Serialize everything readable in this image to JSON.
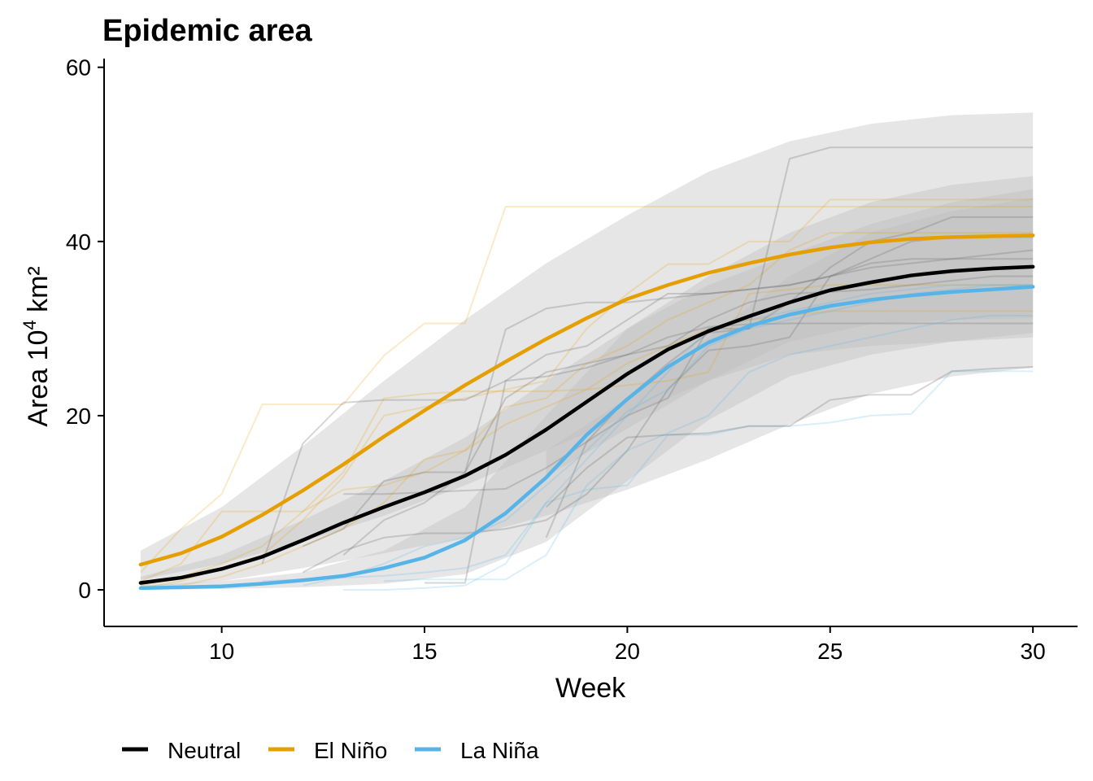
{
  "chart_data": {
    "type": "line",
    "title": "Epidemic area",
    "xlabel": "Week",
    "ylabel": {
      "prefix": "Area 10",
      "superscript": "4",
      "suffix": " km²"
    },
    "xlim": [
      7.1,
      31.1
    ],
    "ylim": [
      -4.2,
      61
    ],
    "x_ticks": [
      10,
      15,
      20,
      25,
      30
    ],
    "y_ticks": [
      0,
      20,
      40,
      60
    ],
    "x_tick_labels": [
      "10",
      "15",
      "20",
      "25",
      "30"
    ],
    "y_tick_labels": [
      "0",
      "20",
      "40",
      "60"
    ],
    "legend_position": "bottom-left",
    "colors": {
      "Neutral": "#000000",
      "El Niño": "#E69F00",
      "La Niña": "#56B4E9",
      "ribbon": "#bdbdbd"
    },
    "series": [
      {
        "name": "Neutral",
        "color": "#000000",
        "x": [
          8,
          9,
          10,
          11,
          12,
          13,
          14,
          15,
          16,
          17,
          18,
          19,
          20,
          21,
          22,
          23,
          24,
          25,
          26,
          27,
          28,
          29,
          30
        ],
        "values": [
          0.8,
          1.4,
          2.4,
          3.8,
          5.7,
          7.7,
          9.5,
          11.2,
          13.1,
          15.5,
          18.4,
          21.6,
          24.8,
          27.6,
          29.7,
          31.4,
          33.0,
          34.4,
          35.3,
          36.1,
          36.6,
          36.9,
          37.1
        ]
      },
      {
        "name": "El Niño",
        "color": "#E69F00",
        "x": [
          8,
          9,
          10,
          11,
          12,
          13,
          14,
          15,
          16,
          17,
          18,
          19,
          20,
          21,
          22,
          23,
          24,
          25,
          26,
          27,
          28,
          29,
          30
        ],
        "values": [
          2.9,
          4.2,
          6.1,
          8.6,
          11.4,
          14.4,
          17.6,
          20.6,
          23.5,
          26.2,
          28.8,
          31.2,
          33.4,
          35.0,
          36.4,
          37.5,
          38.5,
          39.3,
          39.9,
          40.3,
          40.5,
          40.6,
          40.7
        ]
      },
      {
        "name": "La Niña",
        "color": "#56B4E9",
        "x": [
          8,
          9,
          10,
          11,
          12,
          13,
          14,
          15,
          16,
          17,
          18,
          19,
          20,
          21,
          22,
          23,
          24,
          25,
          26,
          27,
          28,
          29,
          30
        ],
        "values": [
          0.2,
          0.3,
          0.4,
          0.7,
          1.1,
          1.6,
          2.5,
          3.7,
          5.7,
          8.8,
          12.9,
          17.8,
          21.9,
          25.6,
          28.4,
          30.3,
          31.6,
          32.6,
          33.3,
          33.8,
          34.2,
          34.5,
          34.8
        ]
      }
    ],
    "ribbons": [
      {
        "series": "El Niño",
        "x": [
          8,
          10,
          12,
          14,
          16,
          18,
          20,
          22,
          24,
          26,
          28,
          30
        ],
        "lower": [
          1.2,
          3.0,
          5.5,
          8.5,
          12.0,
          16.0,
          20.0,
          24.0,
          27.0,
          28.0,
          28.5,
          29.0
        ],
        "upper": [
          4.5,
          9.5,
          16.5,
          24.0,
          31.0,
          37.5,
          43.0,
          48.0,
          51.5,
          53.5,
          54.5,
          54.8
        ]
      },
      {
        "series": "Neutral",
        "x": [
          8,
          10,
          12,
          14,
          16,
          18,
          20,
          22,
          24,
          26,
          28,
          30
        ],
        "lower": [
          0.2,
          1.0,
          2.5,
          4.2,
          6.0,
          8.5,
          11.5,
          15.0,
          19.0,
          22.5,
          24.5,
          25.5
        ],
        "upper": [
          1.5,
          4.0,
          8.0,
          12.5,
          17.5,
          24.0,
          30.0,
          36.0,
          41.0,
          44.5,
          46.5,
          47.5
        ]
      },
      {
        "series": "La Niña",
        "x": [
          8,
          10,
          12,
          14,
          16,
          18,
          20,
          22,
          24,
          26,
          28,
          30
        ],
        "lower": [
          0.0,
          0.1,
          0.3,
          0.7,
          1.8,
          5.5,
          12.5,
          19.5,
          24.5,
          27.0,
          28.5,
          29.5
        ],
        "upper": [
          0.5,
          1.0,
          2.0,
          4.5,
          9.5,
          20.0,
          30.0,
          35.0,
          38.5,
          42.0,
          44.5,
          46.0
        ]
      },
      {
        "series": "Neutral",
        "x": [
          18,
          20,
          22,
          24,
          26,
          28,
          30
        ],
        "lower": [
          13.0,
          18.5,
          24.0,
          28.5,
          30.5,
          31.0,
          31.2
        ],
        "upper": [
          16.0,
          22.0,
          29.0,
          36.0,
          41.0,
          43.5,
          45.0
        ]
      }
    ],
    "observed": [
      {
        "series": "El Niño",
        "x": [
          8,
          9,
          10,
          11,
          12,
          13,
          14,
          15,
          16,
          17,
          18,
          19,
          20,
          21,
          22,
          23,
          24,
          25,
          26,
          27,
          28,
          29,
          30
        ],
        "values": [
          2.0,
          7.0,
          11.0,
          21.3,
          21.3,
          21.3,
          26.9,
          30.6,
          30.6,
          44.0,
          44.0,
          44.0,
          44.0,
          44.0,
          44.0,
          44.0,
          44.0,
          44.0,
          44.0,
          44.0,
          44.0,
          44.0,
          44.0
        ]
      },
      {
        "series": "El Niño",
        "x": [
          8,
          9,
          10,
          11,
          12,
          13,
          14,
          15,
          16,
          17,
          18,
          19,
          20,
          21,
          22,
          23,
          24,
          25,
          26,
          27,
          28,
          29,
          30
        ],
        "values": [
          1.0,
          3.0,
          9.0,
          9.0,
          9.0,
          13.5,
          22.0,
          22.5,
          22.8,
          22.8,
          22.8,
          23.0,
          23.5,
          24.0,
          25.0,
          34.0,
          34.5,
          35.0,
          35.0,
          35.0,
          35.0,
          35.0,
          35.0
        ]
      },
      {
        "series": "El Niño",
        "x": [
          8,
          9,
          10,
          11,
          12,
          13,
          14,
          15,
          16,
          17,
          18,
          19,
          20,
          21,
          22,
          23,
          24,
          25,
          26,
          27,
          28,
          29,
          30
        ],
        "values": [
          0.5,
          1.5,
          3.0,
          5.0,
          9.0,
          11.5,
          12.0,
          13.5,
          16.0,
          21.0,
          22.0,
          26.0,
          28.0,
          31.0,
          33.0,
          35.0,
          39.0,
          41.0,
          41.0,
          41.0,
          41.0,
          41.0,
          41.0
        ]
      },
      {
        "series": "El Niño",
        "x": [
          8,
          9,
          10,
          11,
          12,
          13,
          14,
          15,
          16,
          17,
          18,
          19,
          20,
          21,
          22,
          23,
          24,
          25,
          26,
          27,
          28,
          29,
          30
        ],
        "values": [
          0.2,
          1.0,
          2.5,
          4.0,
          8.0,
          13.0,
          20.0,
          21.0,
          22.0,
          23.0,
          24.0,
          30.0,
          34.0,
          37.4,
          37.4,
          40.0,
          40.0,
          44.8,
          44.8,
          44.8,
          44.8,
          44.8,
          44.8
        ]
      },
      {
        "series": "El Niño",
        "x": [
          8,
          9,
          10,
          11,
          12,
          13,
          14,
          15,
          16,
          17,
          18,
          19,
          20,
          21,
          22,
          23,
          24,
          25,
          26,
          27,
          28,
          29,
          30
        ],
        "values": [
          0.1,
          0.5,
          1.5,
          3.0,
          5.0,
          7.0,
          10.0,
          15.0,
          16.0,
          19.0,
          21.0,
          23.0,
          26.0,
          28.0,
          30.0,
          31.0,
          31.5,
          32.0,
          32.0,
          32.0,
          32.0,
          32.0,
          32.0
        ]
      },
      {
        "series": "Neutral",
        "x": [
          11,
          12,
          13,
          14,
          15,
          16,
          17,
          18,
          19,
          20,
          21,
          22,
          23,
          24,
          25,
          26,
          27,
          28,
          29,
          30
        ],
        "values": [
          3.0,
          16.8,
          21.5,
          21.8,
          21.8,
          21.8,
          24.0,
          27.0,
          28.0,
          31.0,
          34.0,
          34.0,
          34.5,
          35.0,
          36.0,
          37.5,
          38.0,
          38.0,
          38.0,
          38.0
        ]
      },
      {
        "series": "Neutral",
        "x": [
          12,
          13,
          14,
          15,
          16,
          17,
          18,
          19,
          20,
          21,
          22,
          23,
          24,
          25,
          26,
          27,
          28,
          29,
          30
        ],
        "values": [
          5.0,
          7.0,
          12.5,
          13.5,
          13.5,
          29.9,
          32.3,
          33.0,
          33.0,
          33.5,
          34.0,
          34.5,
          35.0,
          36.0,
          37.0,
          37.5,
          38.0,
          38.5,
          39.0
        ]
      },
      {
        "series": "Neutral",
        "x": [
          13,
          14,
          15,
          16,
          17,
          18,
          19,
          20,
          21,
          22,
          23,
          24,
          25,
          26,
          27,
          28,
          29,
          30
        ],
        "values": [
          11.0,
          11.0,
          11.2,
          11.4,
          11.6,
          14.0,
          17.0,
          22.0,
          26.0,
          29.5,
          30.0,
          33.0,
          37.0,
          40.0,
          41.0,
          42.8,
          42.8,
          42.8
        ]
      },
      {
        "series": "Neutral",
        "x": [
          18,
          19,
          20,
          21,
          22,
          23,
          24,
          25,
          26,
          27,
          28,
          29,
          30
        ],
        "values": [
          6.0,
          17.0,
          20.0,
          22.0,
          30.0,
          30.0,
          49.5,
          50.8,
          50.8,
          50.8,
          50.8,
          50.8,
          50.8
        ]
      },
      {
        "series": "Neutral",
        "x": [
          12,
          13,
          14,
          15,
          16,
          17,
          18,
          19,
          20,
          21,
          22,
          23,
          24,
          25,
          26,
          27,
          28,
          29,
          30
        ],
        "values": [
          2.0,
          4.5,
          6.0,
          6.5,
          6.5,
          7.0,
          8.0,
          11.0,
          16.0,
          23.0,
          27.5,
          28.0,
          29.0,
          36.0,
          38.0,
          40.0,
          40.5,
          40.5,
          40.5
        ]
      },
      {
        "series": "Neutral",
        "x": [
          15,
          16,
          17,
          18,
          19,
          20,
          21,
          22,
          23,
          24,
          25,
          26,
          27,
          28,
          29,
          30
        ],
        "values": [
          0.8,
          0.8,
          24.0,
          24.5,
          25.5,
          27.0,
          29.0,
          30.2,
          30.5,
          30.6,
          30.6,
          30.6,
          30.6,
          30.6,
          30.6,
          30.6
        ]
      },
      {
        "series": "Neutral",
        "x": [
          13,
          14,
          15,
          16,
          17,
          18,
          19,
          20,
          21,
          22,
          23,
          24,
          25,
          26,
          27,
          28,
          29,
          30
        ],
        "values": [
          4.0,
          8.0,
          10.0,
          13.5,
          22.0,
          25.0,
          26.0,
          27.0,
          28.0,
          31.0,
          33.0,
          34.0,
          34.2,
          34.5,
          35.0,
          35.5,
          36.0,
          36.0
        ]
      },
      {
        "series": "La Niña",
        "x": [
          11,
          12,
          13,
          14,
          15,
          16,
          17,
          18,
          19,
          20,
          21,
          22,
          23,
          24,
          25,
          26,
          27,
          28,
          29,
          30
        ],
        "values": [
          1.0,
          1.2,
          1.4,
          1.6,
          2.0,
          2.5,
          4.0,
          10.0,
          15.0,
          20.0,
          25.0,
          30.0,
          31.0,
          32.0,
          33.0,
          34.0,
          34.5,
          35.0,
          35.0,
          35.0
        ]
      },
      {
        "series": "La Niña",
        "x": [
          13,
          14,
          15,
          16,
          17,
          18,
          19,
          20,
          21,
          22,
          23,
          24,
          25,
          26,
          27,
          28,
          29,
          30
        ],
        "values": [
          0.0,
          0.0,
          0.2,
          0.5,
          3.0,
          10.0,
          11.5,
          12.0,
          17.8,
          17.8,
          18.8,
          18.8,
          19.2,
          20.0,
          20.2,
          25.1,
          25.1,
          25.1
        ]
      },
      {
        "series": "La Niña",
        "x": [
          14,
          15,
          16,
          17,
          18,
          19,
          20,
          21,
          22,
          23,
          24,
          25,
          26,
          27,
          28,
          29,
          30
        ],
        "values": [
          1.0,
          1.2,
          1.2,
          1.2,
          4.0,
          12.0,
          16.0,
          18.0,
          20.0,
          25.0,
          27.0,
          28.0,
          29.0,
          30.0,
          31.0,
          31.5,
          31.5
        ]
      },
      {
        "series": "La Niña",
        "x": [
          12,
          13,
          14,
          15,
          16,
          17,
          18,
          19,
          20,
          21,
          22,
          23,
          24,
          25,
          26,
          27,
          28,
          29,
          30
        ],
        "values": [
          0.5,
          1.5,
          3.0,
          5.0,
          6.0,
          8.0,
          12.0,
          16.0,
          20.5,
          23.0,
          28.0,
          30.0,
          31.0,
          32.0,
          33.0,
          34.0,
          34.5,
          35.0,
          35.0
        ]
      },
      {
        "series": "Neutral",
        "x": [
          18,
          19,
          20,
          21,
          22,
          23,
          24,
          25,
          26,
          27,
          28,
          29,
          30
        ],
        "values": [
          9.5,
          14.0,
          17.5,
          17.8,
          18.0,
          18.8,
          18.8,
          21.8,
          22.4,
          22.4,
          25.1,
          25.4,
          25.6
        ]
      }
    ],
    "observed_alpha": {
      "Neutral": 0.28,
      "El Niño": 0.22,
      "La Niña": 0.22
    }
  }
}
